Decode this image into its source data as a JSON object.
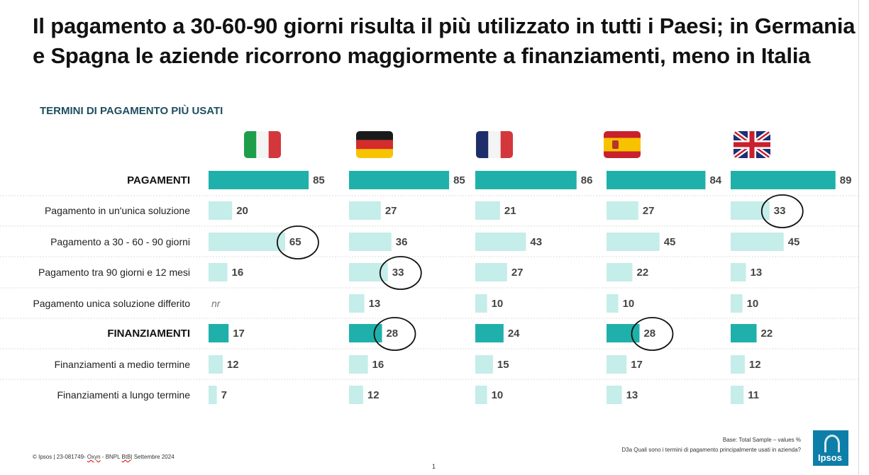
{
  "title": "Il pagamento a 30-60-90 giorni risulta il più utilizzato in tutti i Paesi; in Germania e Spagna le aziende ricorrono maggiormente a finanziamenti, meno in Italia",
  "subtitle": "TERMINI DI PAGAMENTO PIÙ USATI",
  "colors": {
    "category_bar": "#1fb0ab",
    "sub_bar": "#c5ede9",
    "grid": "#dddddd"
  },
  "chart_data": {
    "type": "bar",
    "orientation": "horizontal",
    "title": "TERMINI DI PAGAMENTO PIÙ USATI",
    "categories": [
      "PAGAMENTI",
      "Pagamento in un'unica soluzione",
      "Pagamento a 30 - 60 - 90 giorni",
      "Pagamento tra 90 giorni e 12 mesi",
      "Pagamento unica soluzione differito",
      "FINANZIAMENTI",
      "Finanziamenti a medio termine",
      "Finanziamenti a lungo termine"
    ],
    "category_rows": [
      0,
      5
    ],
    "series": [
      {
        "name": "Italia",
        "flag": "italy-flag",
        "values": [
          85,
          20,
          65,
          16,
          null,
          17,
          12,
          7
        ],
        "labels": [
          "85",
          "20",
          "65",
          "16",
          "nr",
          "17",
          "12",
          "7"
        ],
        "circled": [
          2
        ]
      },
      {
        "name": "Germania",
        "flag": "germany-flag",
        "values": [
          85,
          27,
          36,
          33,
          13,
          28,
          16,
          12
        ],
        "labels": [
          "85",
          "27",
          "36",
          "33",
          "13",
          "28",
          "16",
          "12"
        ],
        "circled": [
          3,
          5
        ]
      },
      {
        "name": "Francia",
        "flag": "france-flag",
        "values": [
          86,
          21,
          43,
          27,
          10,
          24,
          15,
          10
        ],
        "labels": [
          "86",
          "21",
          "43",
          "27",
          "10",
          "24",
          "15",
          "10"
        ],
        "circled": []
      },
      {
        "name": "Spagna",
        "flag": "spain-flag",
        "values": [
          84,
          27,
          45,
          22,
          10,
          28,
          17,
          13
        ],
        "labels": [
          "84",
          "27",
          "45",
          "22",
          "10",
          "28",
          "17",
          "13"
        ],
        "circled": [
          5
        ]
      },
      {
        "name": "Regno Unito",
        "flag": "uk-flag",
        "values": [
          89,
          33,
          45,
          13,
          10,
          22,
          12,
          11
        ],
        "labels": [
          "89",
          "33",
          "45",
          "13",
          "10",
          "22",
          "12",
          "11"
        ],
        "circled": [
          1
        ]
      }
    ],
    "xlim": [
      0,
      100
    ]
  },
  "footer": {
    "copyright_prefix": "© Ipsos | 23-081749- ",
    "copyright_underlined": "Oxyn",
    "copyright_mid": " - BNPL ",
    "copyright_underlined2": "BtB",
    "copyright_suffix": "| Settembre 2024",
    "page": "1",
    "base": "Base: Total Sample – values %",
    "question": "D3a Quali sono i termini di pagamento principalmente usati in azienda?",
    "logo": "Ipsos"
  }
}
